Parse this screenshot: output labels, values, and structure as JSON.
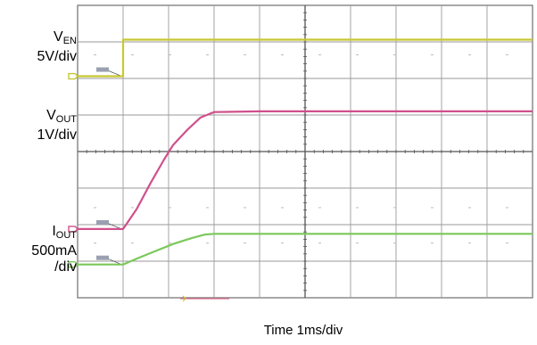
{
  "chart_data": {
    "type": "line",
    "xlabel": "Time 1ms/div",
    "x_unit": "ms",
    "x_divisions": 10,
    "y_divisions": 8,
    "xlim": [
      0,
      10
    ],
    "grid": true,
    "channel_labels": [
      {
        "main": "V",
        "sub": "EN",
        "line2": "5V/div",
        "line3": ""
      },
      {
        "main": "V",
        "sub": "OUT",
        "line2": "1V/div",
        "line3": ""
      },
      {
        "main": "I",
        "sub": "OUT",
        "line2": "500mA",
        "line3": "/div"
      }
    ],
    "series": [
      {
        "key": "ven",
        "color": "#c8c832",
        "offset_div": 6.06,
        "scale": 5,
        "x": [
          0,
          1.0,
          1.0,
          10
        ],
        "y": [
          0,
          0,
          5,
          5
        ]
      },
      {
        "key": "vout",
        "color": "#d0508c",
        "offset_div": 1.88,
        "scale": 1,
        "x": [
          0,
          1.0,
          1.3,
          1.6,
          1.9,
          2.1,
          2.4,
          2.7,
          3.0,
          4.0,
          10
        ],
        "y": [
          0,
          0,
          0.55,
          1.25,
          1.9,
          2.3,
          2.7,
          3.05,
          3.2,
          3.22,
          3.22
        ]
      },
      {
        "key": "iout",
        "color": "#7ac85a",
        "offset_div": 0.91,
        "scale": 0.5,
        "x": [
          0,
          1.0,
          1.3,
          1.7,
          2.1,
          2.5,
          2.8,
          3.0,
          10
        ],
        "y": [
          0,
          0,
          0.08,
          0.18,
          0.28,
          0.36,
          0.41,
          0.42,
          0.42
        ]
      }
    ]
  }
}
